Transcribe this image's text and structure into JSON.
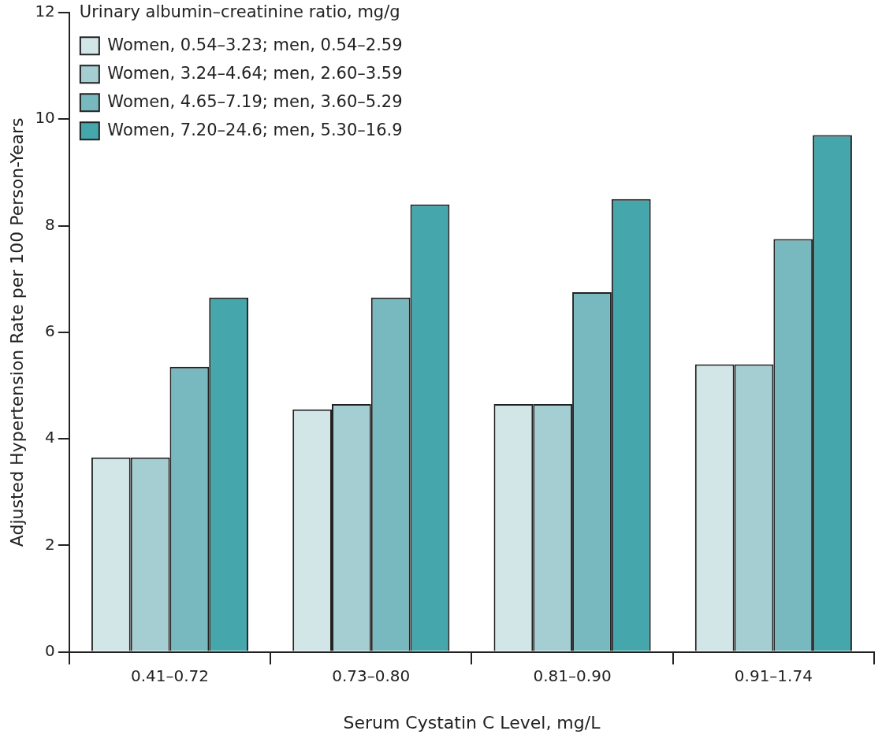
{
  "chart_data": {
    "type": "bar",
    "xlabel": "Serum Cystatin C Level, mg/L",
    "ylabel": "Adjusted Hypertension Rate per 100 Person-Years",
    "legend_title": "Urinary albumin–creatinine ratio, mg/g",
    "categories": [
      "0.41–0.72",
      "0.73–0.80",
      "0.81–0.90",
      "0.91–1.74"
    ],
    "series": [
      {
        "name": "Women, 0.54–3.23; men, 0.54–2.59",
        "color": "#d2e6e8",
        "values": [
          3.65,
          4.55,
          4.65,
          5.4
        ]
      },
      {
        "name": "Women, 3.24–4.64; men, 2.60–3.59",
        "color": "#a5ced3",
        "values": [
          3.65,
          4.65,
          4.65,
          5.4
        ]
      },
      {
        "name": "Women, 4.65–7.19; men, 3.60–5.29",
        "color": "#78b9bf",
        "values": [
          5.35,
          6.65,
          6.75,
          7.75
        ]
      },
      {
        "name": "Women, 7.20–24.6; men, 5.30–16.9",
        "color": "#45a6ab",
        "values": [
          6.65,
          8.4,
          8.5,
          9.7
        ]
      }
    ],
    "ylim": [
      0,
      12
    ],
    "yticks": [
      0,
      2,
      4,
      6,
      8,
      10,
      12
    ],
    "grid": false,
    "legend": "top left"
  }
}
